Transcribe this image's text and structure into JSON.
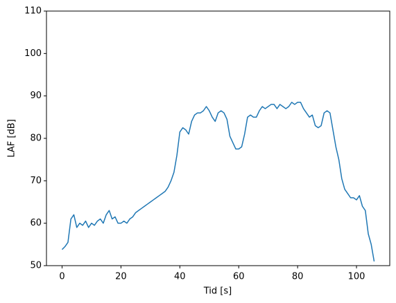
{
  "chart_data": {
    "type": "line",
    "xlabel": "Tid [s]",
    "ylabel": "LAF [dB]",
    "x": [
      0,
      1,
      2,
      3,
      4,
      5,
      6,
      7,
      8,
      9,
      10,
      11,
      12,
      13,
      14,
      15,
      16,
      17,
      18,
      19,
      20,
      21,
      22,
      23,
      24,
      25,
      26,
      27,
      28,
      29,
      30,
      31,
      32,
      33,
      34,
      35,
      36,
      37,
      38,
      39,
      40,
      41,
      42,
      43,
      44,
      45,
      46,
      47,
      48,
      49,
      50,
      51,
      52,
      53,
      54,
      55,
      56,
      57,
      58,
      59,
      60,
      61,
      62,
      63,
      64,
      65,
      66,
      67,
      68,
      69,
      70,
      71,
      72,
      73,
      74,
      75,
      76,
      77,
      78,
      79,
      80,
      81,
      82,
      83,
      84,
      85,
      86,
      87,
      88,
      89,
      90,
      91,
      92,
      93,
      94,
      95,
      96,
      97,
      98,
      99,
      100,
      101,
      102,
      103,
      104,
      105,
      106
    ],
    "values": [
      53.8,
      54.5,
      55.5,
      61,
      62,
      59,
      60,
      59.5,
      60.5,
      59,
      60,
      59.5,
      60.5,
      61,
      60,
      62,
      63,
      61,
      61.5,
      60,
      60,
      60.5,
      60,
      61,
      61.5,
      62.5,
      63,
      63.5,
      64,
      64.5,
      65,
      65.5,
      66,
      66.5,
      67,
      67.5,
      68.5,
      70,
      72,
      76,
      81.5,
      82.5,
      82,
      81,
      84,
      85.5,
      86,
      86,
      86.5,
      87.5,
      86.5,
      85,
      84,
      86,
      86.5,
      86,
      84.5,
      80.5,
      79,
      77.5,
      77.5,
      78,
      81,
      85,
      85.5,
      85,
      85,
      86.5,
      87.5,
      87,
      87.5,
      88,
      88,
      87,
      88,
      87.5,
      87,
      87.5,
      88.5,
      88,
      88.5,
      88.5,
      87,
      86,
      85,
      85.5,
      83,
      82.5,
      83,
      86,
      86.5,
      86,
      82,
      78,
      75,
      70.5,
      68,
      67,
      66,
      66,
      65.5,
      66.5,
      64,
      63,
      57.5,
      55,
      51
    ],
    "color": "#1f77b4",
    "xlim": [
      -5.3,
      111.3
    ],
    "xticks": [
      0,
      20,
      40,
      60,
      80,
      100
    ],
    "ylim": [
      50,
      110
    ],
    "yticks": [
      50,
      60,
      70,
      80,
      90,
      100,
      110
    ],
    "grid": false
  }
}
